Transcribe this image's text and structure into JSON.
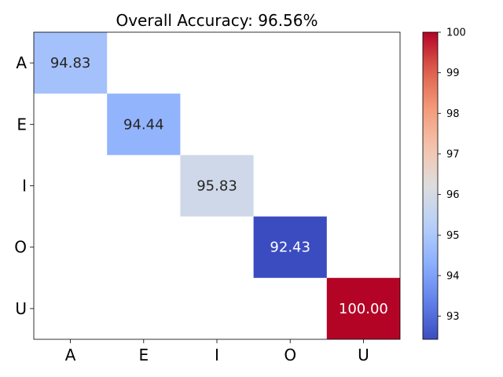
{
  "chart_data": {
    "type": "heatmap",
    "title": "Overall Accuracy: 96.56%",
    "xlabel": "",
    "ylabel": "",
    "x_categories": [
      "A",
      "E",
      "I",
      "O",
      "U"
    ],
    "y_categories": [
      "A",
      "E",
      "I",
      "O",
      "U"
    ],
    "cells": [
      {
        "row": "A",
        "col": "A",
        "value": 94.83,
        "label": "94.83"
      },
      {
        "row": "E",
        "col": "E",
        "value": 94.44,
        "label": "94.44"
      },
      {
        "row": "I",
        "col": "I",
        "value": 95.83,
        "label": "95.83"
      },
      {
        "row": "O",
        "col": "O",
        "value": 92.43,
        "label": "92.43"
      },
      {
        "row": "U",
        "col": "U",
        "value": 100.0,
        "label": "100.00"
      }
    ],
    "empty_cells": "blank",
    "colormap": "coolwarm",
    "colorbar": {
      "vmin": 92.43,
      "vmax": 100,
      "ticks": [
        93,
        94,
        95,
        96,
        97,
        98,
        99,
        100
      ],
      "tick_labels": [
        "93",
        "94",
        "95",
        "96",
        "97",
        "98",
        "99",
        "100"
      ],
      "placement": "right"
    },
    "grid": false
  }
}
